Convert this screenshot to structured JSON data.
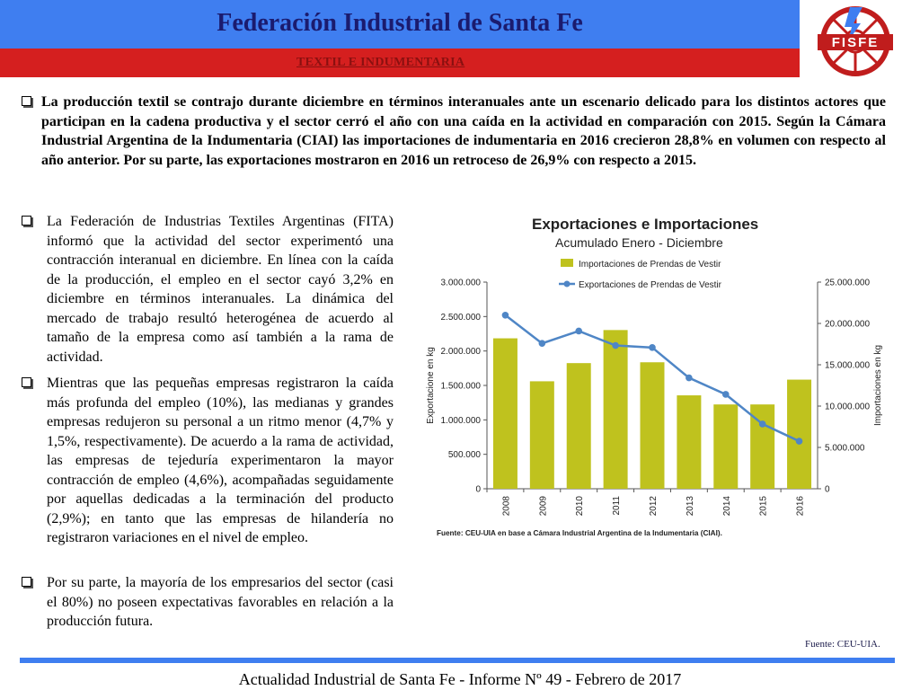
{
  "header": {
    "title": "Federación Industrial de Santa Fe",
    "subtitle": "TEXTIL E INDUMENTARIA",
    "logo_text": "FISFE"
  },
  "bullets": [
    "La producción textil se contrajo durante diciembre en términos interanuales ante un escenario delicado para los distintos actores que participan en la cadena productiva y el sector cerró el año con una caída en la actividad en comparación con 2015. Según la Cámara Industrial Argentina de la Indumentaria (CIAI) las importaciones de indumentaria en 2016 crecieron 28,8% en volumen con respecto al año anterior. Por su parte, las exportaciones mostraron en 2016 un retroceso de 26,9% con respecto a 2015.",
    "La Federación de Industrias Textiles Argentinas (FITA) informó que la actividad del sector experimentó una contracción interanual en diciembre. En línea con la caída de la producción, el empleo en el sector cayó 3,2% en diciembre en términos interanuales. La dinámica del mercado de trabajo resultó heterogénea de acuerdo al tamaño de la empresa como así también a la rama de actividad.",
    "Mientras que las pequeñas empresas registraron la caída más profunda del empleo (10%), las medianas y grandes empresas redujeron su personal a un ritmo menor (4,7% y 1,5%, respectivamente). De acuerdo a la rama de actividad, las empresas de tejeduría experimentaron la mayor contracción de empleo (4,6%), acompañadas seguidamente por aquellas dedicadas a la terminación del producto (2,9%); en tanto que las empresas de hilandería no registraron variaciones en el nivel de empleo.",
    "Por su parte, la mayoría de los empresarios del sector (casi el 80%) no poseen expectativas favorables en relación a la producción futura."
  ],
  "chart_data": {
    "type": "bar+line",
    "title": "Exportaciones e Importaciones",
    "subtitle": "Acumulado Enero - Diciembre",
    "categories": [
      "2008",
      "2009",
      "2010",
      "2011",
      "2012",
      "2013",
      "2014",
      "2015",
      "2016"
    ],
    "series": [
      {
        "name": "Importaciones de Prendas de Vestir",
        "kind": "bar",
        "axis": "right",
        "color": "#bfc21e",
        "values": [
          18200000,
          13000000,
          15200000,
          19200000,
          15300000,
          11300000,
          10200000,
          10200000,
          13200000
        ]
      },
      {
        "name": "Exportaciones de Prendas de Vestir",
        "kind": "line",
        "axis": "left",
        "color": "#4f86c6",
        "values": [
          2520000,
          2110000,
          2290000,
          2080000,
          2050000,
          1610000,
          1370000,
          940000,
          690000
        ]
      }
    ],
    "y_left": {
      "label": "Exportacione en kg",
      "ylim": [
        0,
        3000000
      ],
      "ticks": [
        "0",
        "500.000",
        "1.000.000",
        "1.500.000",
        "2.000.000",
        "2.500.000",
        "3.000.000"
      ]
    },
    "y_right": {
      "label": "Importaciones en kg",
      "ylim": [
        0,
        25000000
      ],
      "ticks": [
        "0",
        "5.000.000",
        "10.000.000",
        "15.000.000",
        "20.000.000",
        "25.000.000"
      ]
    },
    "legend_position": "top",
    "grid": false,
    "source": "Fuente: CEU-UIA en base a Cámara Industrial Argentina de la Indumentaria (CIAI)."
  },
  "source_note": "Fuente: CEU-UIA.",
  "footer": "Actualidad Industrial de Santa Fe - Informe Nº 49 - Febrero de 2017"
}
